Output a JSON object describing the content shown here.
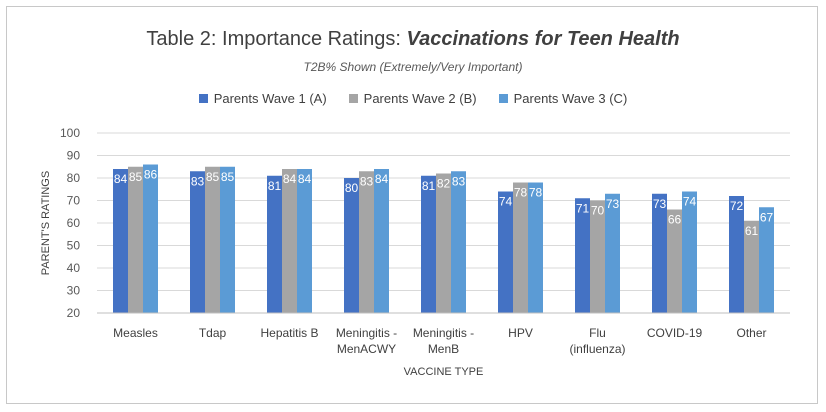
{
  "chart_data": {
    "type": "bar",
    "title_main": "Table 2: Importance Ratings: ",
    "title_emphasis": "Vaccinations for Teen Health",
    "subtitle": "T2B% Shown (Extremely/Very Important)",
    "xlabel": "VACCINE TYPE",
    "ylabel": "PARENT'S RATINGS",
    "ylim": [
      20,
      100
    ],
    "yticks": [
      20,
      30,
      40,
      50,
      60,
      70,
      80,
      90,
      100
    ],
    "grid": true,
    "legend_position": "top-center",
    "categories": [
      [
        "Measles"
      ],
      [
        "Tdap"
      ],
      [
        "Hepatitis B"
      ],
      [
        "Meningitis -",
        "MenACWY"
      ],
      [
        "Meningitis -",
        "MenB"
      ],
      [
        "HPV"
      ],
      [
        "Flu",
        "(influenza)"
      ],
      [
        "COVID-19"
      ],
      [
        "Other"
      ]
    ],
    "series": [
      {
        "name": "Parents Wave 1 (A)",
        "color": "#4472c4",
        "values": [
          84,
          83,
          81,
          80,
          81,
          74,
          71,
          73,
          72
        ],
        "labels": [
          "84",
          "83",
          "81",
          "80",
          "81",
          "74",
          "71",
          "73",
          "72"
        ]
      },
      {
        "name": "Parents Wave 2 (B)",
        "color": "#a5a5a5",
        "values": [
          85,
          85,
          84,
          83,
          82,
          78,
          70,
          66,
          61
        ],
        "labels": [
          "85",
          "85",
          "84",
          "83",
          "82",
          "78",
          "70",
          "66",
          "61"
        ]
      },
      {
        "name": "Parents Wave 3 (C)",
        "color": "#5b9bd5",
        "values": [
          86,
          85,
          84,
          84,
          83,
          78,
          73,
          74,
          67
        ],
        "labels": [
          "86",
          "85",
          "84",
          "84",
          "83",
          "78",
          "73",
          "74",
          "67"
        ]
      }
    ]
  }
}
